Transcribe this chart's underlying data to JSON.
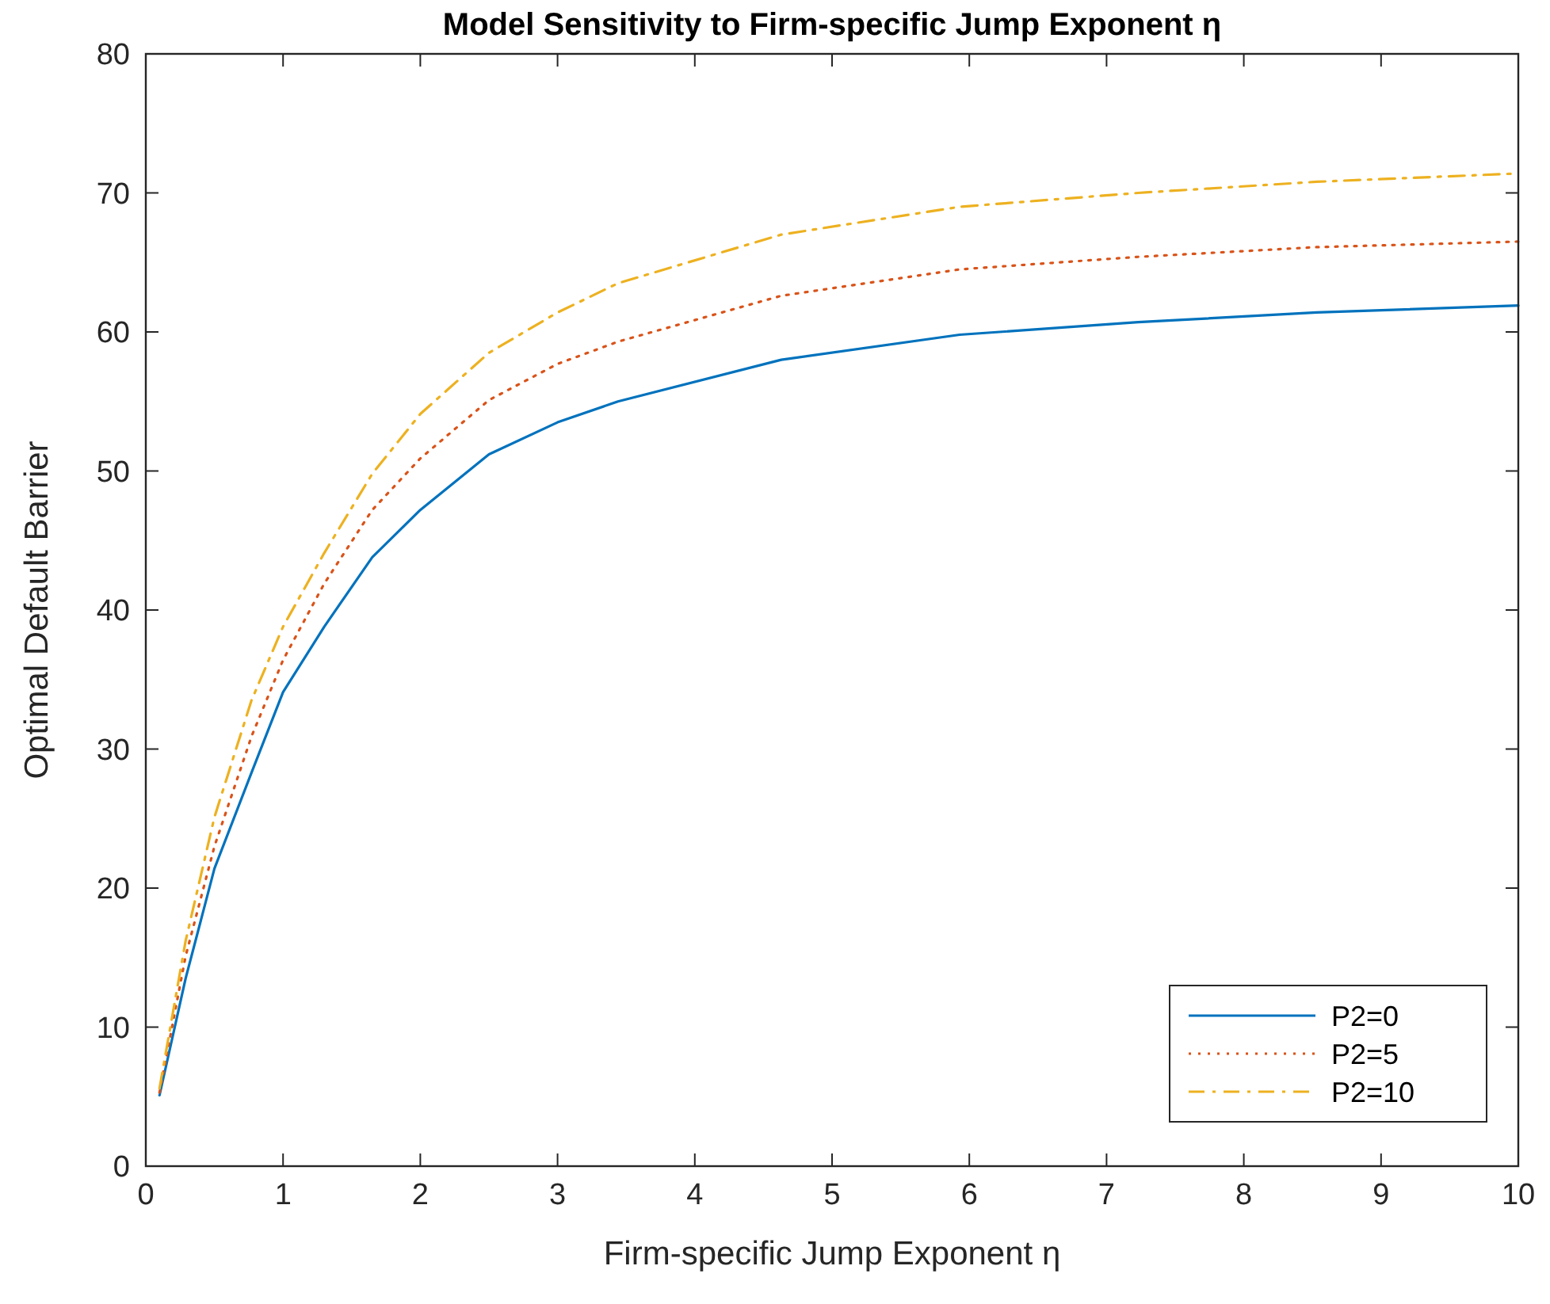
{
  "chart_data": {
    "type": "line",
    "title": "Model Sensitivity to Firm-specific Jump Exponent η",
    "xlabel": "Firm-specific Jump Exponent η",
    "ylabel": "Optimal Default Barrier",
    "xlim": [
      0,
      10
    ],
    "ylim": [
      0,
      80
    ],
    "xticks": [
      0,
      1,
      2,
      3,
      4,
      5,
      6,
      7,
      8,
      9,
      10
    ],
    "yticks": [
      0,
      10,
      20,
      30,
      40,
      50,
      60,
      70,
      80
    ],
    "grid": false,
    "legend": "bottom right",
    "series": [
      {
        "name": "P2=0",
        "color": "#0072bd",
        "line_style": "solid",
        "x": [
          0.1,
          0.29,
          0.5,
          0.77,
          1.0,
          1.3,
          1.65,
          2.0,
          2.5,
          3.0,
          3.44,
          4.63,
          5.93,
          7.23,
          8.53,
          10
        ],
        "values": [
          5.1,
          13.5,
          21.4,
          28.3,
          34.1,
          38.8,
          43.8,
          47.2,
          51.2,
          53.5,
          55.0,
          58.0,
          59.8,
          60.7,
          61.4,
          61.9
        ]
      },
      {
        "name": "P2=5",
        "color": "#d95319",
        "line_style": "dotted",
        "x": [
          0.1,
          0.29,
          0.5,
          0.77,
          1.0,
          1.3,
          1.65,
          2.0,
          2.5,
          3.0,
          3.44,
          4.63,
          5.93,
          7.23,
          8.53,
          10
        ],
        "values": [
          5.3,
          15.1,
          23.0,
          30.9,
          36.4,
          41.9,
          47.2,
          50.9,
          55.1,
          57.7,
          59.3,
          62.6,
          64.5,
          65.4,
          66.1,
          66.5
        ]
      },
      {
        "name": "P2=10",
        "color": "#edb120",
        "line_style": "dashdot",
        "x": [
          0.1,
          0.29,
          0.5,
          0.77,
          1.0,
          1.3,
          1.65,
          2.0,
          2.5,
          3.0,
          3.44,
          4.63,
          5.93,
          7.23,
          8.53,
          10
        ],
        "values": [
          5.6,
          16.2,
          25.1,
          33.5,
          38.8,
          44.1,
          49.8,
          54.1,
          58.5,
          61.4,
          63.5,
          67.0,
          69.0,
          70.0,
          70.8,
          71.4
        ]
      }
    ]
  }
}
